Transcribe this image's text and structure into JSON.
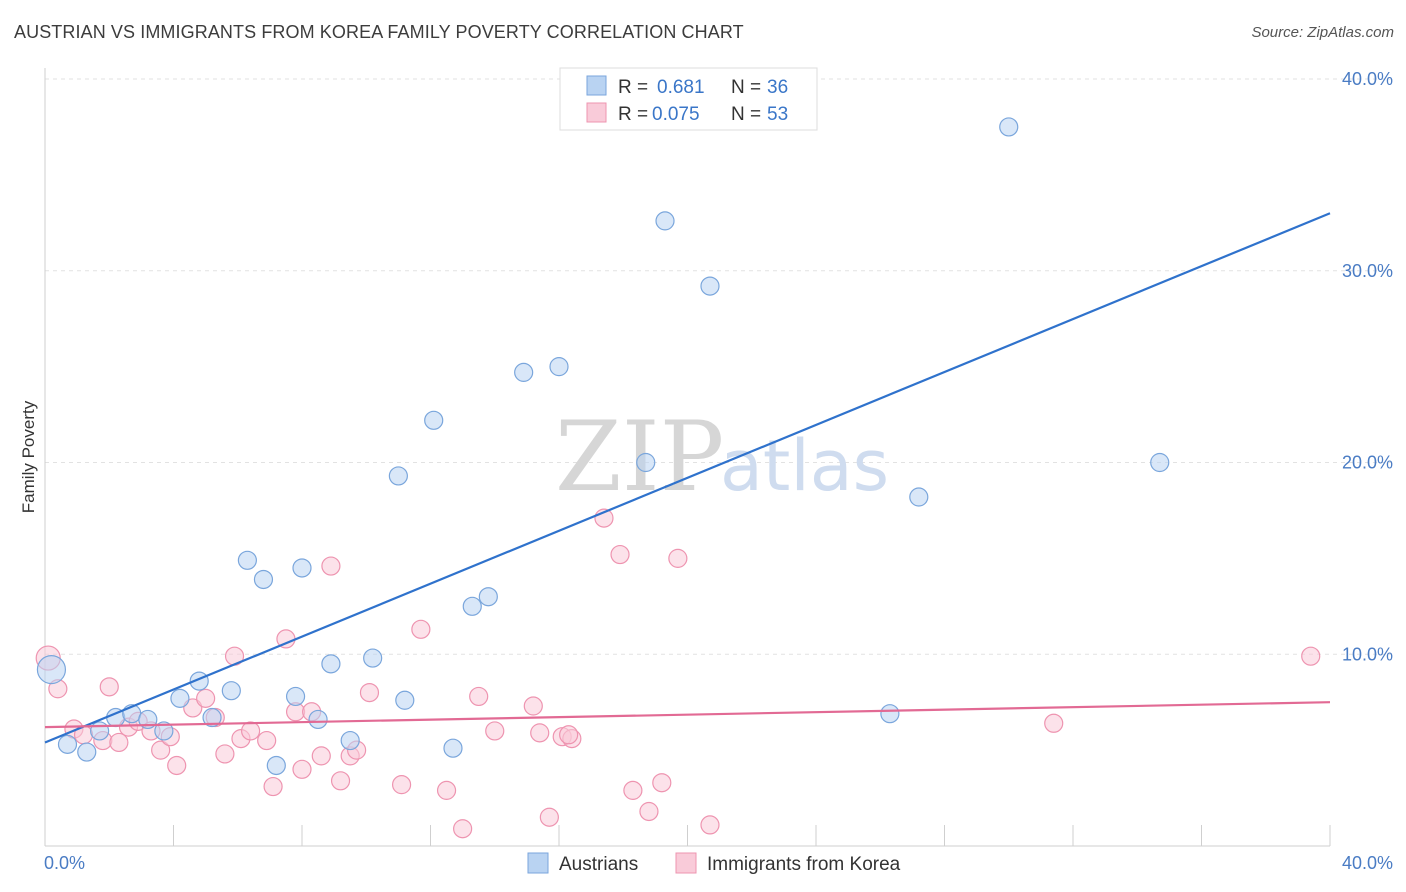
{
  "header": {
    "title": "AUSTRIAN VS IMMIGRANTS FROM KOREA FAMILY POVERTY CORRELATION CHART",
    "source": "Source: ZipAtlas.com"
  },
  "watermark": {
    "zip": "ZIP",
    "atlas": "atlas"
  },
  "legend": {
    "rows": [
      {
        "r_label": "R = ",
        "r_value": "0.681",
        "n_label": "N = ",
        "n_value": "36"
      },
      {
        "r_label": "R = ",
        "r_value": "0.075",
        "n_label": "N = ",
        "n_value": "53"
      }
    ]
  },
  "bottom_legend": [
    "Austrians",
    "Immigrants from Korea"
  ],
  "colors": {
    "blue_fill": "#b9d3f2",
    "blue_stroke": "#7aa6dc",
    "blue_line": "#2f72cc",
    "pink_fill": "#f9cbd9",
    "pink_stroke": "#ee94b0",
    "pink_line": "#e26a94",
    "grid": "#e2e2e2",
    "tick_text": "#4a7cc4"
  },
  "chart_data": {
    "type": "scatter",
    "title": "AUSTRIAN VS IMMIGRANTS FROM KOREA FAMILY POVERTY CORRELATION CHART",
    "xlabel": "",
    "ylabel": "Family Poverty",
    "xlim": [
      0,
      40
    ],
    "ylim": [
      0,
      40
    ],
    "x_ticks": [
      "0.0%",
      "40.0%"
    ],
    "y_ticks": [
      "10.0%",
      "20.0%",
      "30.0%",
      "40.0%"
    ],
    "y_tick_values": [
      10,
      20,
      30,
      40
    ],
    "grid": true,
    "legend_position": "top-center",
    "series": [
      {
        "name": "Austrians",
        "r": 0.681,
        "n": 36,
        "trend": [
          [
            0,
            5.4
          ],
          [
            40,
            33.0
          ]
        ],
        "points": [
          [
            0.2,
            9.2,
            14
          ],
          [
            0.7,
            5.3,
            9
          ],
          [
            1.3,
            4.9,
            9
          ],
          [
            1.7,
            6.0,
            9
          ],
          [
            2.2,
            6.7,
            9
          ],
          [
            2.7,
            6.9,
            9
          ],
          [
            3.2,
            6.6,
            9
          ],
          [
            3.7,
            6.0,
            9
          ],
          [
            4.2,
            7.7,
            9
          ],
          [
            4.8,
            8.6,
            9
          ],
          [
            5.2,
            6.7,
            9
          ],
          [
            5.8,
            8.1,
            9
          ],
          [
            6.3,
            14.9,
            9
          ],
          [
            6.8,
            13.9,
            9
          ],
          [
            7.2,
            4.2,
            9
          ],
          [
            8.0,
            14.5,
            9
          ],
          [
            7.8,
            7.8,
            9
          ],
          [
            8.5,
            6.6,
            9
          ],
          [
            8.9,
            9.5,
            9
          ],
          [
            9.5,
            5.5,
            9
          ],
          [
            10.2,
            9.8,
            9
          ],
          [
            11.0,
            19.3,
            9
          ],
          [
            11.2,
            7.6,
            9
          ],
          [
            12.1,
            22.2,
            9
          ],
          [
            12.7,
            5.1,
            9
          ],
          [
            13.3,
            12.5,
            9
          ],
          [
            13.8,
            13.0,
            9
          ],
          [
            14.9,
            24.7,
            9
          ],
          [
            16.0,
            25.0,
            9
          ],
          [
            18.7,
            20.0,
            9
          ],
          [
            19.3,
            32.6,
            9
          ],
          [
            20.7,
            29.2,
            9
          ],
          [
            26.3,
            6.9,
            9
          ],
          [
            27.2,
            18.2,
            9
          ],
          [
            30.0,
            37.5,
            9
          ],
          [
            34.7,
            20.0,
            9
          ]
        ]
      },
      {
        "name": "Immigrants from Korea",
        "r": 0.075,
        "n": 53,
        "trend": [
          [
            0,
            6.2
          ],
          [
            40,
            7.5
          ]
        ],
        "points": [
          [
            0.1,
            9.8,
            12
          ],
          [
            0.4,
            8.2,
            9
          ],
          [
            0.9,
            6.1,
            9
          ],
          [
            1.2,
            5.8,
            9
          ],
          [
            1.8,
            5.5,
            9
          ],
          [
            2.0,
            8.3,
            9
          ],
          [
            2.3,
            5.4,
            9
          ],
          [
            2.6,
            6.2,
            9
          ],
          [
            2.9,
            6.5,
            9
          ],
          [
            3.3,
            6.0,
            9
          ],
          [
            3.6,
            5.0,
            9
          ],
          [
            3.9,
            5.7,
            9
          ],
          [
            4.1,
            4.2,
            9
          ],
          [
            4.6,
            7.2,
            9
          ],
          [
            5.0,
            7.7,
            9
          ],
          [
            5.3,
            6.7,
            9
          ],
          [
            5.6,
            4.8,
            9
          ],
          [
            5.9,
            9.9,
            9
          ],
          [
            6.1,
            5.6,
            9
          ],
          [
            6.4,
            6.0,
            9
          ],
          [
            6.9,
            5.5,
            9
          ],
          [
            7.1,
            3.1,
            9
          ],
          [
            7.5,
            10.8,
            9
          ],
          [
            7.8,
            7.0,
            9
          ],
          [
            8.0,
            4.0,
            9
          ],
          [
            8.3,
            7.0,
            9
          ],
          [
            8.6,
            4.7,
            9
          ],
          [
            8.9,
            14.6,
            9
          ],
          [
            9.2,
            3.4,
            9
          ],
          [
            9.5,
            4.7,
            9
          ],
          [
            9.7,
            5.0,
            9
          ],
          [
            10.1,
            8.0,
            9
          ],
          [
            11.1,
            3.2,
            9
          ],
          [
            11.7,
            11.3,
            9
          ],
          [
            12.5,
            2.9,
            9
          ],
          [
            13.0,
            0.9,
            9
          ],
          [
            13.5,
            7.8,
            9
          ],
          [
            14.0,
            6.0,
            9
          ],
          [
            15.2,
            7.3,
            9
          ],
          [
            15.4,
            5.9,
            9
          ],
          [
            15.7,
            1.5,
            9
          ],
          [
            16.1,
            5.7,
            9
          ],
          [
            16.4,
            5.6,
            9
          ],
          [
            17.4,
            17.1,
            9
          ],
          [
            17.9,
            15.2,
            9
          ],
          [
            18.3,
            2.9,
            9
          ],
          [
            18.8,
            1.8,
            9
          ],
          [
            19.2,
            3.3,
            9
          ],
          [
            19.7,
            15.0,
            9
          ],
          [
            20.7,
            1.1,
            9
          ],
          [
            31.4,
            6.4,
            9
          ],
          [
            39.4,
            9.9,
            9
          ],
          [
            16.3,
            5.8,
            9
          ]
        ]
      }
    ]
  }
}
